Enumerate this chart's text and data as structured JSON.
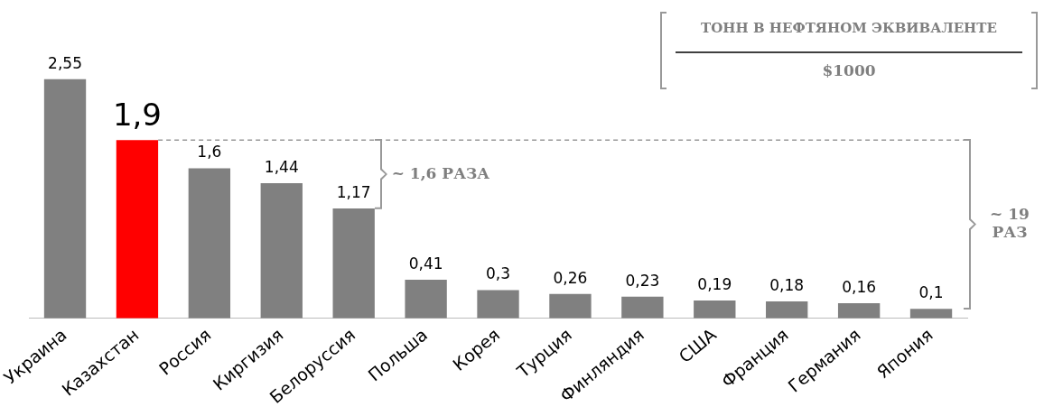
{
  "chart_data": {
    "type": "bar",
    "categories": [
      "Украина",
      "Казахстан",
      "Россия",
      "Киргизия",
      "Белоруссия",
      "Польша",
      "Корея",
      "Турция",
      "Финляндия",
      "США",
      "Франция",
      "Германия",
      "Япония"
    ],
    "values": [
      2.55,
      1.9,
      1.6,
      1.44,
      1.17,
      0.41,
      0.3,
      0.26,
      0.23,
      0.19,
      0.18,
      0.16,
      0.1
    ],
    "colors": [
      "#808080",
      "#ff0000",
      "#808080",
      "#808080",
      "#808080",
      "#808080",
      "#808080",
      "#808080",
      "#808080",
      "#808080",
      "#808080",
      "#808080",
      "#808080"
    ],
    "value_labels": [
      "2,55",
      "1,9",
      "1,6",
      "1,44",
      "1,17",
      "0,41",
      "0,3",
      "0,26",
      "0,23",
      "0,19",
      "0,18",
      "0,16",
      "0,1"
    ],
    "annotations": [
      "ТОНН В НЕФТЯНОМ ЭКВИВАЛЕНТЕ",
      "$1000",
      "~ 1,6 РАЗА",
      "~ 19 РАЗ"
    ],
    "ref_lines": [
      {
        "axis": "y",
        "value": 1.9,
        "color": "#999999",
        "line_style": "dashed"
      }
    ],
    "grid": false,
    "legend": false
  }
}
